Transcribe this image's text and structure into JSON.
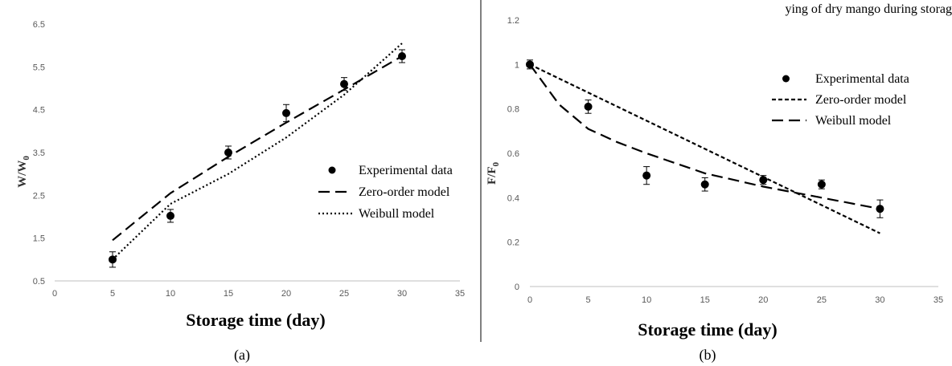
{
  "page": {
    "top_text": "ying of dry mango during storag",
    "subfigure_labels": [
      "(a)",
      "(b)"
    ]
  },
  "chart_data": [
    {
      "type": "line",
      "panel_label": "(a)",
      "xlabel": "Storage time (day)",
      "ylabel": "W/W",
      "ylabel_subscript": "0",
      "xlim": [
        0,
        35
      ],
      "ylim": [
        0.5,
        6.5
      ],
      "x_ticks": [
        "0",
        "5",
        "10",
        "15",
        "20",
        "25",
        "30",
        "35"
      ],
      "y_ticks": [
        "0.5",
        "1.5",
        "2.5",
        "3.5",
        "4.5",
        "5.5",
        "6.5"
      ],
      "legend_position": "right",
      "series": [
        {
          "name": "Experimental data",
          "style": "markers",
          "color": "#000000",
          "x": [
            5,
            10,
            15,
            20,
            25,
            30
          ],
          "y": [
            1.0,
            2.02,
            3.5,
            4.42,
            5.1,
            5.75
          ],
          "error": [
            0.18,
            0.15,
            0.15,
            0.2,
            0.15,
            0.15
          ]
        },
        {
          "name": "Zero-order model",
          "style": "long-dash",
          "color": "#000000",
          "x": [
            5,
            10,
            15,
            20,
            25,
            30
          ],
          "y": [
            1.45,
            2.55,
            3.4,
            4.2,
            4.97,
            5.75
          ]
        },
        {
          "name": "Weibull model",
          "style": "dotted",
          "color": "#000000",
          "x": [
            5,
            10,
            15,
            20,
            25,
            30
          ],
          "y": [
            1.0,
            2.3,
            3.0,
            3.85,
            4.85,
            6.05
          ]
        }
      ]
    },
    {
      "type": "line",
      "panel_label": "(b)",
      "xlabel": "Storage time (day)",
      "ylabel": "F/F",
      "ylabel_subscript": "0",
      "xlim": [
        0,
        35
      ],
      "ylim": [
        0,
        1.2
      ],
      "x_ticks": [
        "0",
        "5",
        "10",
        "15",
        "20",
        "25",
        "30",
        "35"
      ],
      "y_ticks": [
        "0",
        "0.2",
        "0.4",
        "0.6",
        "0.8",
        "1",
        "1.2"
      ],
      "legend_position": "top-right",
      "series": [
        {
          "name": "Experimental data",
          "style": "markers",
          "color": "#000000",
          "x": [
            0,
            5,
            10,
            15,
            20,
            25,
            30
          ],
          "y": [
            1.0,
            0.81,
            0.5,
            0.46,
            0.48,
            0.46,
            0.35
          ],
          "error": [
            0.02,
            0.03,
            0.04,
            0.03,
            0.02,
            0.02,
            0.04
          ]
        },
        {
          "name": "Zero-order model",
          "style": "short-dash",
          "color": "#000000",
          "x": [
            0,
            30
          ],
          "y": [
            1.0,
            0.24
          ]
        },
        {
          "name": "Weibull model",
          "style": "long-dash",
          "color": "#000000",
          "x": [
            0,
            2.5,
            5,
            7.5,
            10,
            15,
            20,
            25,
            30
          ],
          "y": [
            1.0,
            0.82,
            0.71,
            0.65,
            0.6,
            0.51,
            0.45,
            0.4,
            0.35
          ]
        }
      ]
    }
  ]
}
